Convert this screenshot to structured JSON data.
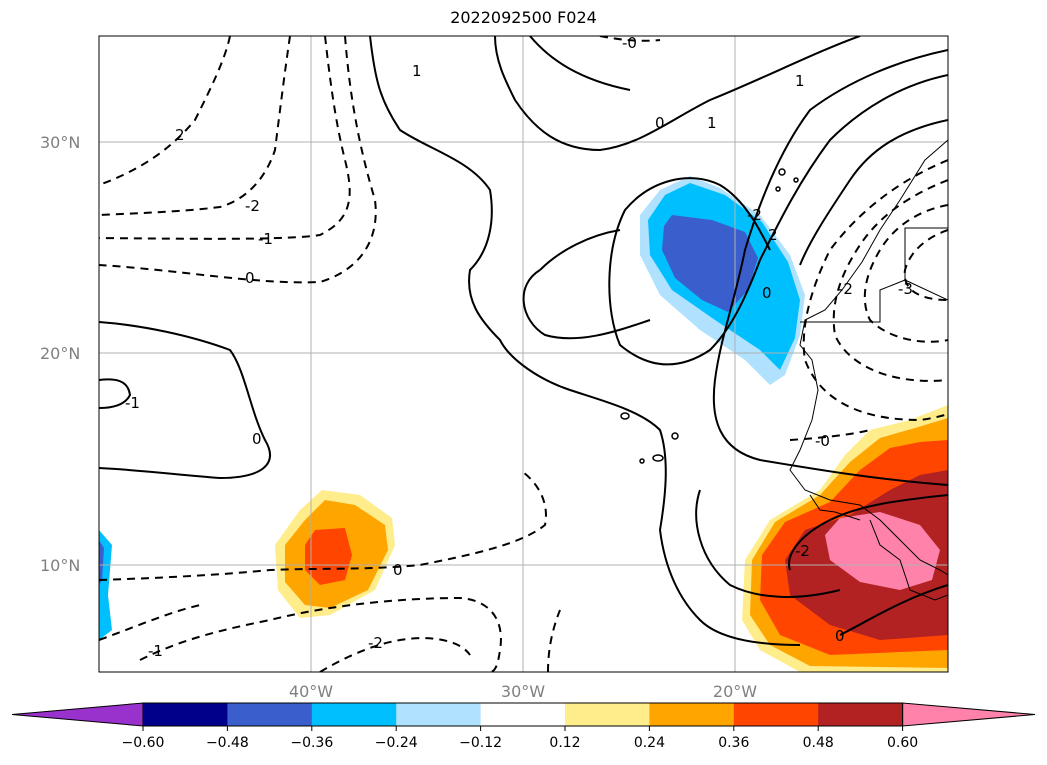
{
  "title": "2022092500 F024",
  "map": {
    "lat_labels": [
      "30°N",
      "20°N",
      "10°N"
    ],
    "lon_labels": [
      "40°W",
      "30°W",
      "20°W"
    ],
    "gridlines": true
  },
  "contour_labels": [
    "1",
    "-0",
    "0",
    "1",
    "2",
    "-2",
    "-2",
    "-1",
    "0",
    "0",
    "-1",
    "0",
    "-2",
    "-1",
    "-2",
    "-0",
    "-2",
    "-3",
    "0",
    "2",
    "0",
    "1"
  ],
  "colorbar": {
    "ticks": [
      "−0.60",
      "−0.48",
      "−0.36",
      "−0.24",
      "−0.12",
      "0.12",
      "0.24",
      "0.36",
      "0.48",
      "0.60"
    ],
    "colors": [
      "#9932cc",
      "#00008b",
      "#3a5fcd",
      "#00bfff",
      "#b0e2ff",
      "#ffffff",
      "#ffec8b",
      "#ffa500",
      "#ff4500",
      "#b22222",
      "#ff82ab"
    ],
    "extend": "both"
  }
}
